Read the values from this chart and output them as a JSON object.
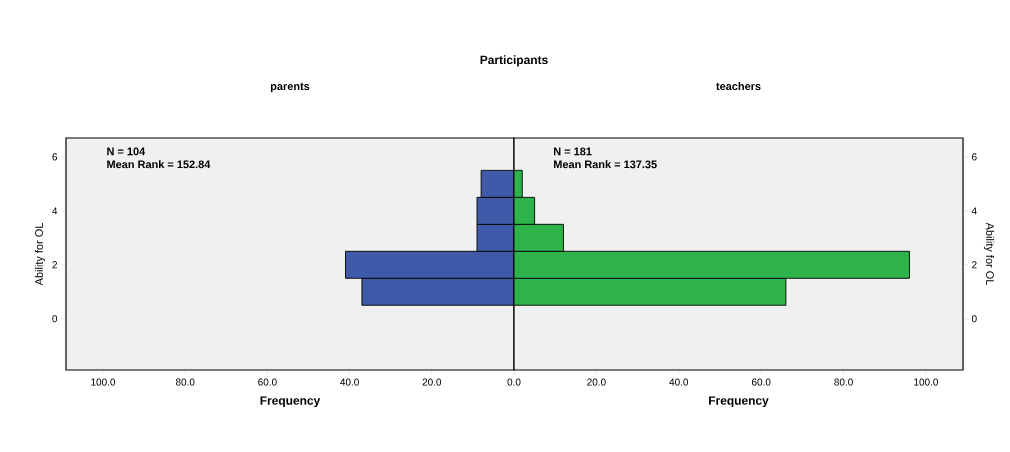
{
  "chart_data": [
    {
      "type": "histogram",
      "orientation": "horizontal",
      "title": "Participants",
      "subtitle": "parents",
      "xlabel": "Frequency",
      "ylabel": "Ability for OL",
      "bins": [
        0.5,
        1.5,
        2.5,
        3.5,
        4.5,
        5.5
      ],
      "values": [
        37,
        41,
        9,
        9,
        8
      ],
      "color": "#3f5aa8",
      "xlim": [
        109,
        0
      ],
      "xticks": [
        {
          "value": 100,
          "label": "100.0"
        },
        {
          "value": 80,
          "label": "80.0"
        },
        {
          "value": 60,
          "label": "60.0"
        },
        {
          "value": 40,
          "label": "40.0"
        },
        {
          "value": 20,
          "label": "20.0"
        },
        {
          "value": 0,
          "label": "0.0"
        }
      ],
      "ylim": [
        -1.9,
        6.7
      ],
      "yticks": [
        0,
        2,
        4,
        6
      ],
      "annotations": [
        "N = 104",
        "Mean Rank = 152.84"
      ]
    },
    {
      "type": "histogram",
      "orientation": "horizontal",
      "subtitle": "teachers",
      "xlabel": "Frequency",
      "ylabel": "Ability for OL",
      "bins": [
        0.5,
        1.5,
        2.5,
        3.5,
        4.5,
        5.5
      ],
      "values": [
        66,
        96,
        12,
        5,
        2
      ],
      "color": "#2db34a",
      "xlim": [
        0,
        109
      ],
      "xticks": [
        {
          "value": 20,
          "label": "20.0"
        },
        {
          "value": 40,
          "label": "40.0"
        },
        {
          "value": 60,
          "label": "60.0"
        },
        {
          "value": 80,
          "label": "80.0"
        },
        {
          "value": 100,
          "label": "100.0"
        }
      ],
      "ylim": [
        -1.9,
        6.7
      ],
      "yticks": [
        0,
        2,
        4,
        6
      ],
      "annotations": [
        "N = 181",
        "Mean Rank = 137.35"
      ]
    }
  ]
}
